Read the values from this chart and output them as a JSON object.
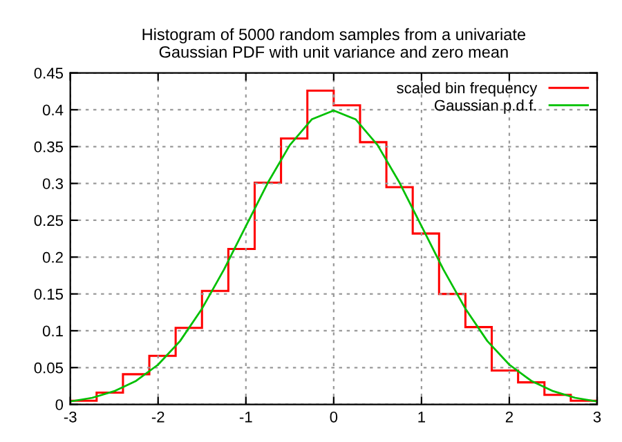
{
  "chart_data": {
    "type": "histogram",
    "title": "Histogram of 5000 random samples from a univariate\nGaussian PDF with unit variance and zero mean",
    "bins": [
      -3,
      -2.7,
      -2.4,
      -2.1,
      -1.8,
      -1.5,
      -1.2,
      -0.9,
      -0.6,
      -0.3,
      0,
      0.3,
      0.6,
      0.9,
      1.2,
      1.5,
      1.8,
      2.1,
      2.4,
      2.7,
      3
    ],
    "series": [
      {
        "name": "scaled bin frequency",
        "color": "#ff0000",
        "values": [
          0.005,
          0.016,
          0.041,
          0.066,
          0.104,
          0.154,
          0.211,
          0.301,
          0.361,
          0.426,
          0.406,
          0.356,
          0.295,
          0.232,
          0.15,
          0.105,
          0.046,
          0.03,
          0.013,
          0.005
        ]
      },
      {
        "type": "line",
        "name": "Gaussian p.d.f.",
        "color": "#00c000",
        "x": [
          -3,
          -2.75,
          -2.5,
          -2.25,
          -2,
          -1.75,
          -1.5,
          -1.25,
          -1,
          -0.75,
          -0.5,
          -0.25,
          0,
          0.25,
          0.5,
          0.75,
          1,
          1.25,
          1.5,
          1.75,
          2,
          2.25,
          2.5,
          2.75,
          3
        ],
        "values": [
          0.004,
          0.009,
          0.018,
          0.032,
          0.054,
          0.086,
          0.13,
          0.183,
          0.242,
          0.301,
          0.352,
          0.387,
          0.399,
          0.387,
          0.352,
          0.301,
          0.242,
          0.183,
          0.13,
          0.086,
          0.054,
          0.032,
          0.018,
          0.009,
          0.004
        ]
      }
    ],
    "xlim": [
      -3,
      3
    ],
    "ylim": [
      0,
      0.45
    ],
    "xticks": [
      -3,
      -2,
      -1,
      0,
      1,
      2,
      3
    ],
    "yticks": [
      0,
      0.05,
      0.1,
      0.15,
      0.2,
      0.25,
      0.3,
      0.35,
      0.4,
      0.45
    ],
    "grid": true,
    "legend": "top right"
  }
}
